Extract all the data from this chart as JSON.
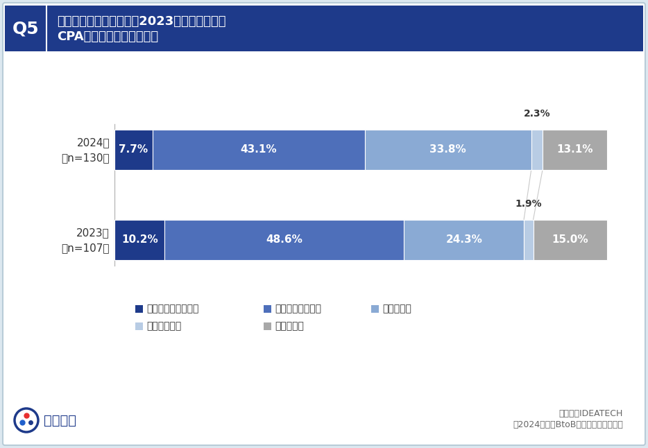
{
  "title_q": "Q5",
  "title_text_line1": "お勤め先の広告施策では2023年と比較して、",
  "title_text_line2": "CPAは上がっていますか。",
  "rows": [
    {
      "label_line1": "2024年",
      "label_line2": "（n=130）",
      "values": [
        7.7,
        43.1,
        33.8,
        2.3,
        13.1
      ],
      "year": 2024
    },
    {
      "label_line1": "2023年",
      "label_line2": "（n=107）",
      "values": [
        10.2,
        48.6,
        24.3,
        1.9,
        15.0
      ],
      "year": 2023
    }
  ],
  "categories": [
    "大幅に上昇している",
    "やや上昇している",
    "変わらない",
    "下がっている",
    "わからない"
  ],
  "colors": [
    "#1e3a8a",
    "#4e6fba",
    "#8aaad4",
    "#b8cce4",
    "#a8a8a8"
  ],
  "background_color": "#ffffff",
  "outer_bg": "#dce8f0",
  "header_bg": "#1e3a8a",
  "header_text_color": "#ffffff",
  "q_label_bg": "#1e3a8a",
  "footer_text1": "株式会社IDEATECH",
  "footer_text2": "【2024年版】BtoB広告施策の定点調査",
  "logo_text": "リサピー"
}
